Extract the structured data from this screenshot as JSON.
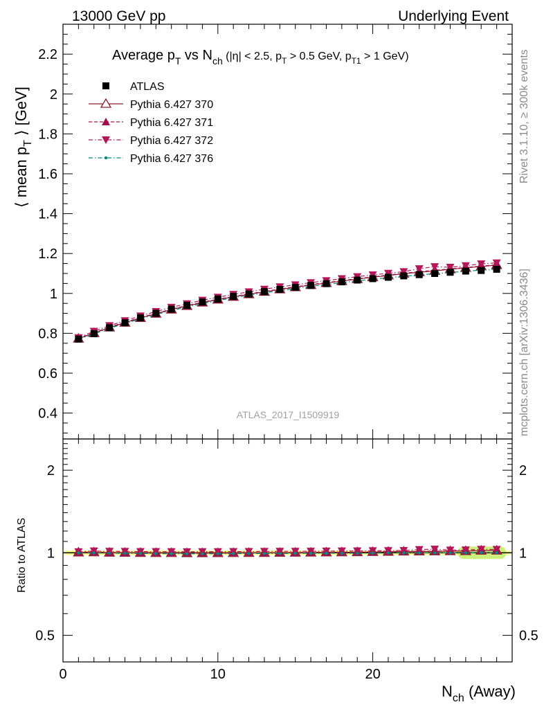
{
  "header": {
    "left": "13000 GeV pp",
    "right": "Underlying Event"
  },
  "side": {
    "rivet": "Rivet 3.1.10, ≥ 300k events",
    "mcplots": "mcplots.cern.ch [arXiv:1306.3436]"
  },
  "analysis_id": "ATLAS_2017_I1509919",
  "chart_data": [
    {
      "type": "scatter",
      "title": "Average p_T vs N_ch (|η| < 2.5, p_T > 0.5 GeV, p_T1 > 1 GeV)",
      "ylabel": "⟨ mean p_T ⟩ [GeV]",
      "xlabel": "N_ch (Away)",
      "xlim": [
        0,
        29
      ],
      "ylim": [
        0.27,
        2.35
      ],
      "yticks": [
        0.4,
        0.6,
        0.8,
        1,
        1.2,
        1.4,
        1.6,
        1.8,
        2,
        2.2
      ],
      "ytick_labels": [
        "0.4",
        "0.6",
        "0.8",
        "1",
        "1.2",
        "1.4",
        "1.6",
        "1.8",
        "2",
        "2.2"
      ],
      "x": [
        1,
        2,
        3,
        4,
        5,
        6,
        7,
        8,
        9,
        10,
        11,
        12,
        13,
        14,
        15,
        16,
        17,
        18,
        19,
        20,
        21,
        22,
        23,
        24,
        25,
        26,
        27,
        28
      ],
      "legend_position": "top-left",
      "series": [
        {
          "name": "ATLAS",
          "color": "#000000",
          "marker": "square",
          "values": [
            0.771,
            0.798,
            0.828,
            0.853,
            0.878,
            0.9,
            0.921,
            0.94,
            0.957,
            0.972,
            0.985,
            0.997,
            1.009,
            1.02,
            1.03,
            1.04,
            1.049,
            1.058,
            1.067,
            1.074,
            1.081,
            1.088,
            1.094,
            1.1,
            1.106,
            1.112,
            1.115,
            1.121
          ]
        },
        {
          "name": "Pythia 6.427 370",
          "color": "#8b1a2a",
          "marker": "open-triangle-up",
          "line": "solid",
          "values": [
            0.773,
            0.801,
            0.829,
            0.853,
            0.877,
            0.898,
            0.919,
            0.937,
            0.954,
            0.969,
            0.983,
            0.996,
            1.008,
            1.02,
            1.031,
            1.042,
            1.052,
            1.062,
            1.072,
            1.081,
            1.09,
            1.099,
            1.106,
            1.113,
            1.121,
            1.128,
            1.135,
            1.142
          ]
        },
        {
          "name": "Pythia 6.427 371",
          "color": "#a0104f",
          "marker": "triangle-up",
          "line": "dashed",
          "values": [
            0.775,
            0.803,
            0.831,
            0.855,
            0.879,
            0.9,
            0.921,
            0.939,
            0.956,
            0.971,
            0.985,
            0.998,
            1.01,
            1.022,
            1.033,
            1.044,
            1.054,
            1.064,
            1.074,
            1.083,
            1.092,
            1.101,
            1.109,
            1.116,
            1.123,
            1.13,
            1.137,
            1.144
          ]
        },
        {
          "name": "Pythia 6.427 372",
          "color": "#b3175a",
          "marker": "triangle-down",
          "line": "dash-dot",
          "values": [
            0.778,
            0.81,
            0.838,
            0.863,
            0.887,
            0.909,
            0.93,
            0.948,
            0.966,
            0.981,
            0.995,
            1.008,
            1.021,
            1.033,
            1.043,
            1.054,
            1.064,
            1.074,
            1.084,
            1.093,
            1.101,
            1.109,
            1.124,
            1.134,
            1.131,
            1.139,
            1.148,
            1.153
          ]
        },
        {
          "name": "Pythia 6.427 376",
          "color": "#008b7a",
          "marker": "dot",
          "line": "dash-dot",
          "values": [
            0.77,
            0.797,
            0.825,
            0.849,
            0.873,
            0.894,
            0.914,
            0.932,
            0.949,
            0.964,
            0.978,
            0.991,
            1.003,
            1.014,
            1.025,
            1.035,
            1.045,
            1.054,
            1.063,
            1.071,
            1.079,
            1.086,
            1.093,
            1.099,
            1.105,
            1.111,
            1.117,
            1.122
          ]
        }
      ]
    },
    {
      "type": "scatter",
      "ylabel": "Ratio to ATLAS",
      "xlabel": "N_ch (Away)",
      "xlim": [
        0,
        29
      ],
      "ylim": [
        0.4,
        2.6
      ],
      "log_y": true,
      "yticks": [
        0.5,
        1,
        2
      ],
      "ytick_labels": [
        "0.5",
        "1",
        "2"
      ],
      "xticks": [
        0,
        10,
        20
      ],
      "xtick_labels": [
        "0",
        "10",
        "20"
      ],
      "band": {
        "description": "data uncertainty band",
        "colors": [
          "#ffff7f",
          "#ccf07a"
        ]
      }
    }
  ]
}
